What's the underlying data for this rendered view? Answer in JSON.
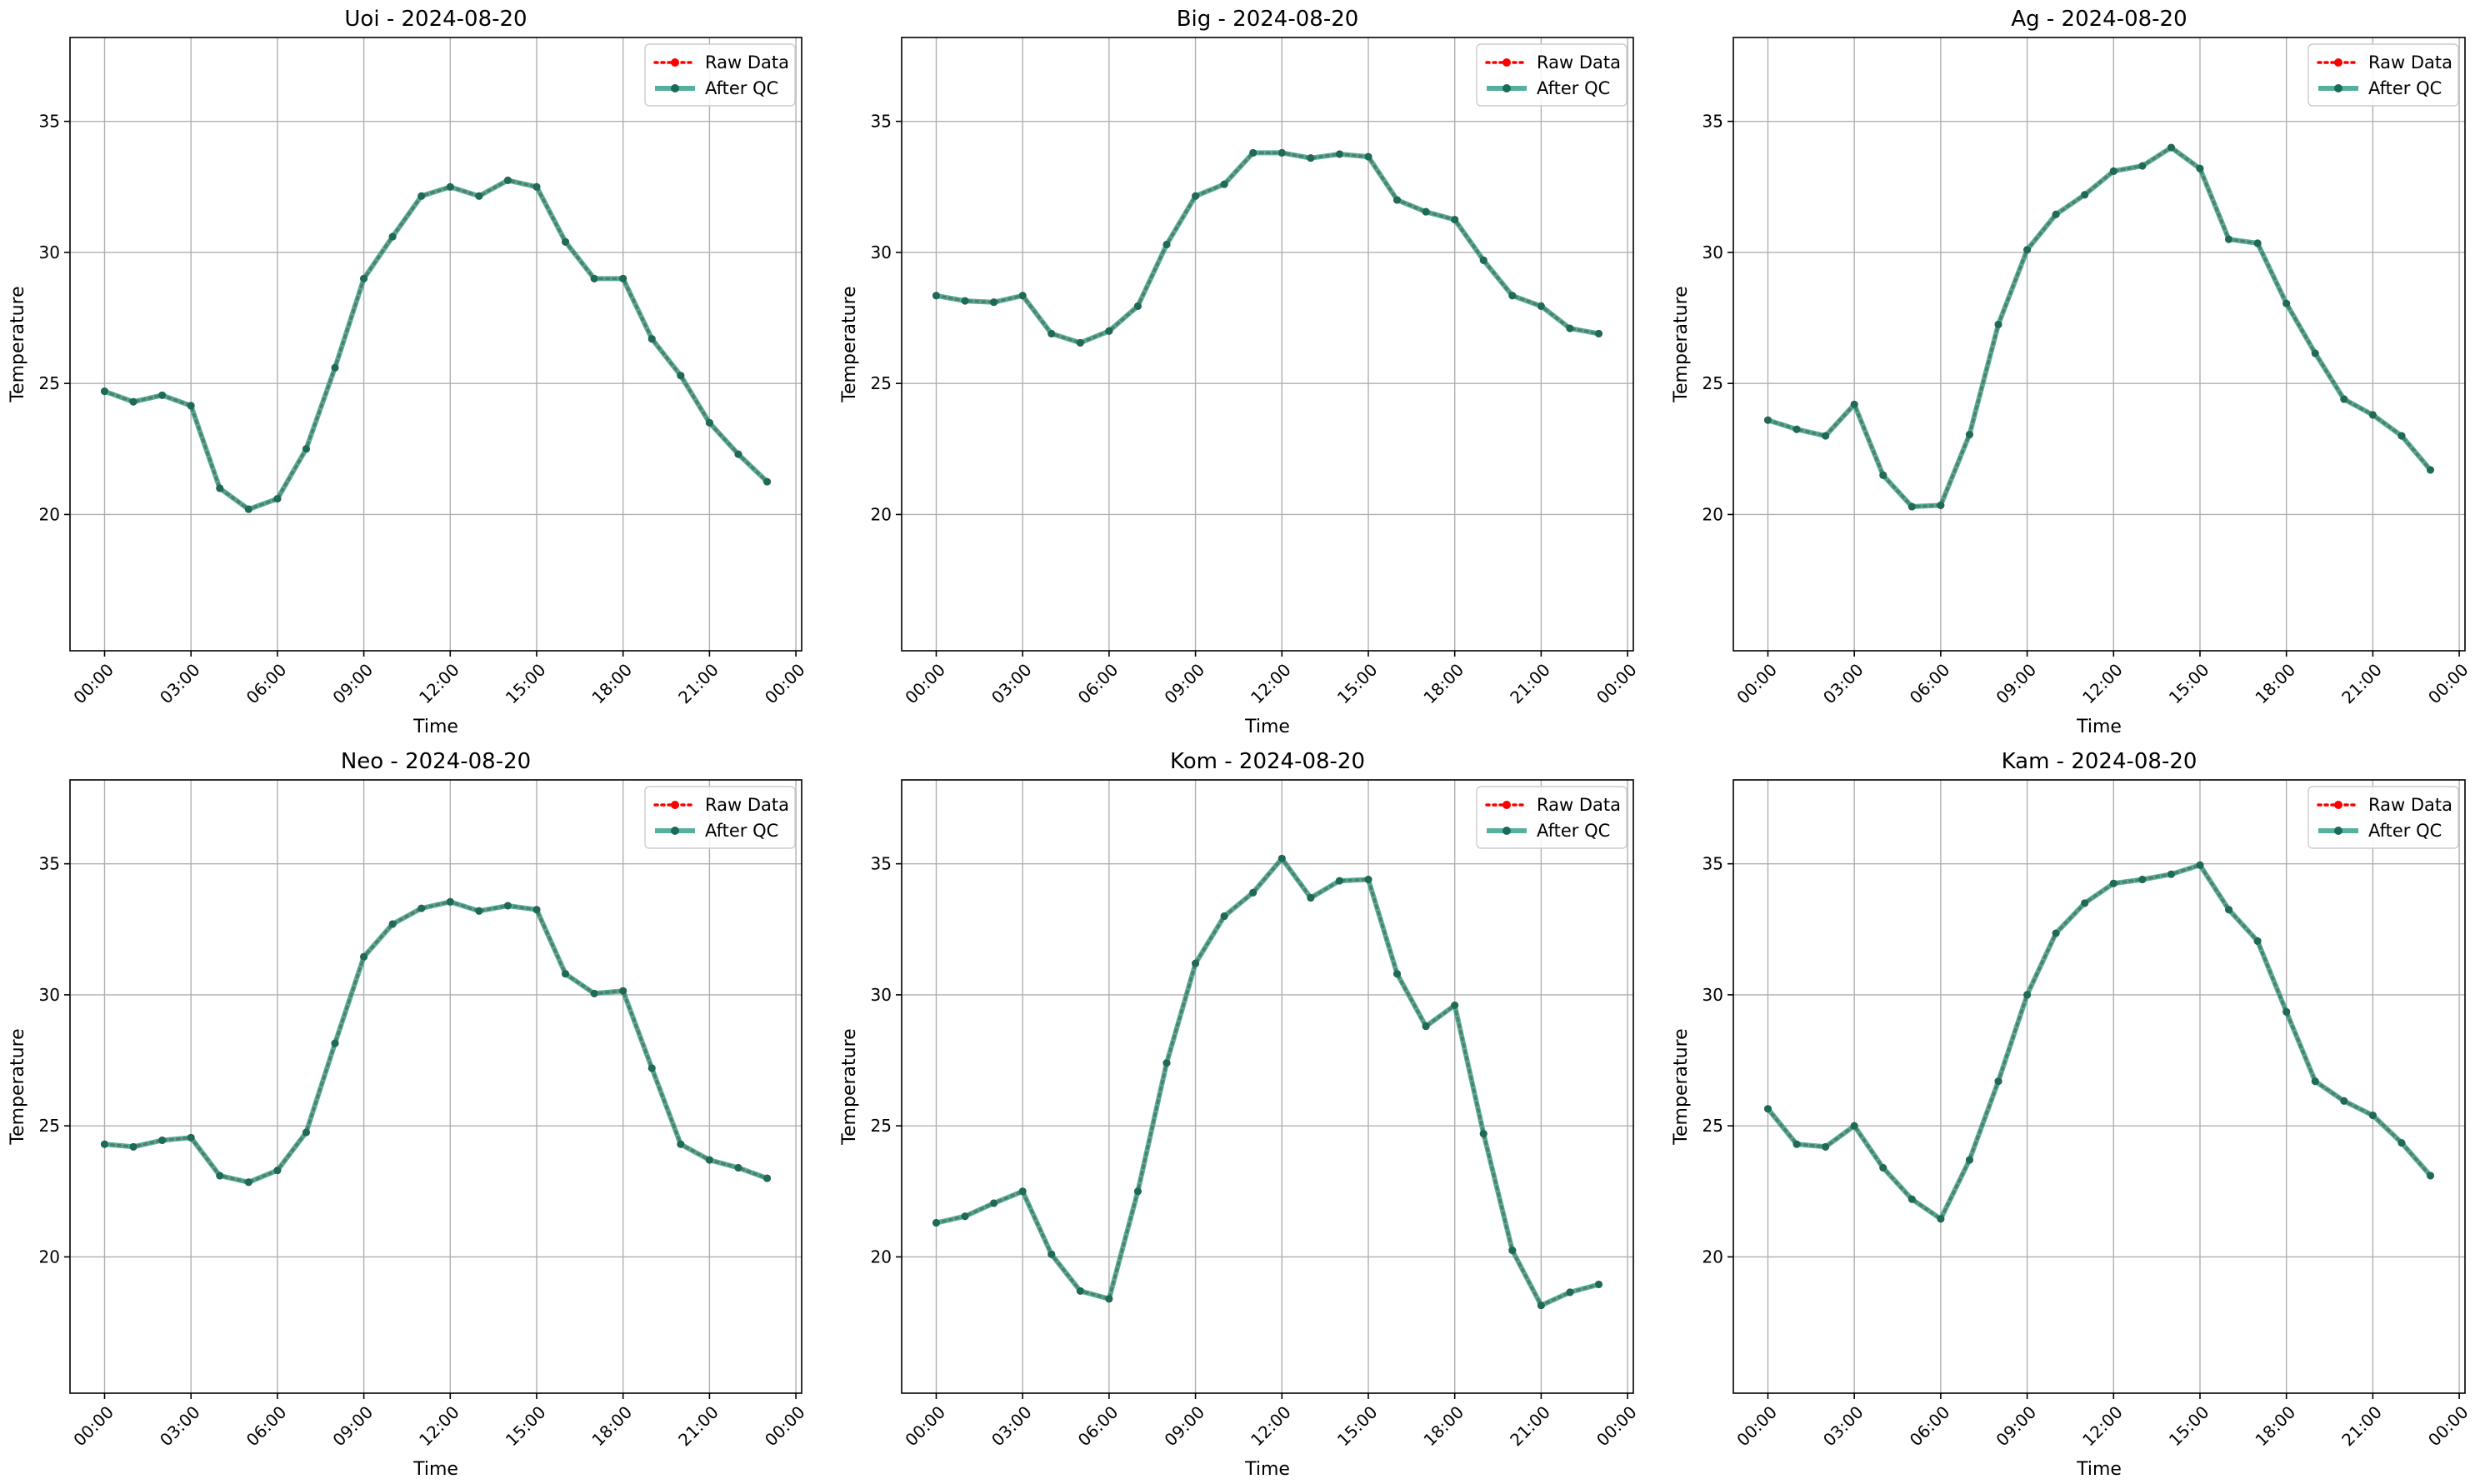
{
  "chart_data": [
    {
      "type": "line",
      "title": "Uoi - 2024-08-20",
      "xlabel": "Time",
      "ylabel": "Temperature",
      "xticks": [
        "00:00",
        "03:00",
        "06:00",
        "09:00",
        "12:00",
        "15:00",
        "18:00",
        "21:00",
        "00:00"
      ],
      "yticks": [
        20,
        25,
        30,
        35
      ],
      "ylim": [
        14.8,
        38.2
      ],
      "xlim_hours": [
        -1.2,
        24.2
      ],
      "grid": true,
      "legend_position": "top-right",
      "x_hours": [
        0,
        1,
        2,
        3,
        4,
        5,
        6,
        7,
        8,
        9,
        10,
        11,
        12,
        13,
        14,
        15,
        16,
        17,
        18,
        19,
        20,
        21,
        22,
        23
      ],
      "series": [
        {
          "name": "Raw Data",
          "color": "#ff0000",
          "style": "dotted-with-markers",
          "values": [
            24.7,
            24.3,
            24.55,
            24.15,
            21.0,
            20.2,
            20.6,
            22.5,
            25.6,
            29.0,
            30.6,
            32.15,
            32.5,
            32.15,
            32.75,
            32.5,
            30.4,
            29.0,
            29.0,
            26.7,
            25.3,
            23.5,
            22.3,
            21.25
          ]
        },
        {
          "name": "After QC",
          "color": "#2b9e84",
          "style": "solid-with-markers",
          "values": [
            24.7,
            24.3,
            24.55,
            24.15,
            21.0,
            20.2,
            20.6,
            22.5,
            25.6,
            29.0,
            30.6,
            32.15,
            32.5,
            32.15,
            32.75,
            32.5,
            30.4,
            29.0,
            29.0,
            26.7,
            25.3,
            23.5,
            22.3,
            21.25
          ]
        }
      ]
    },
    {
      "type": "line",
      "title": "Big - 2024-08-20",
      "xlabel": "Time",
      "ylabel": "Temperature",
      "xticks": [
        "00:00",
        "03:00",
        "06:00",
        "09:00",
        "12:00",
        "15:00",
        "18:00",
        "21:00",
        "00:00"
      ],
      "yticks": [
        20,
        25,
        30,
        35
      ],
      "ylim": [
        14.8,
        38.2
      ],
      "xlim_hours": [
        -1.2,
        24.2
      ],
      "grid": true,
      "legend_position": "top-right",
      "x_hours": [
        0,
        1,
        2,
        3,
        4,
        5,
        6,
        7,
        8,
        9,
        10,
        11,
        12,
        13,
        14,
        15,
        16,
        17,
        18,
        19,
        20,
        21,
        22,
        23
      ],
      "series": [
        {
          "name": "Raw Data",
          "color": "#ff0000",
          "style": "dotted-with-markers",
          "values": [
            28.35,
            28.15,
            28.1,
            28.35,
            26.9,
            26.55,
            27.0,
            27.95,
            30.3,
            32.15,
            32.6,
            33.8,
            33.8,
            33.6,
            33.75,
            33.65,
            32.0,
            31.55,
            31.25,
            29.7,
            28.35,
            27.95,
            27.1,
            26.9
          ]
        },
        {
          "name": "After QC",
          "color": "#2b9e84",
          "style": "solid-with-markers",
          "values": [
            28.35,
            28.15,
            28.1,
            28.35,
            26.9,
            26.55,
            27.0,
            27.95,
            30.3,
            32.15,
            32.6,
            33.8,
            33.8,
            33.6,
            33.75,
            33.65,
            32.0,
            31.55,
            31.25,
            29.7,
            28.35,
            27.95,
            27.1,
            26.9
          ]
        }
      ]
    },
    {
      "type": "line",
      "title": "Ag - 2024-08-20",
      "xlabel": "Time",
      "ylabel": "Temperature",
      "xticks": [
        "00:00",
        "03:00",
        "06:00",
        "09:00",
        "12:00",
        "15:00",
        "18:00",
        "21:00",
        "00:00"
      ],
      "yticks": [
        20,
        25,
        30,
        35
      ],
      "ylim": [
        14.8,
        38.2
      ],
      "xlim_hours": [
        -1.2,
        24.2
      ],
      "grid": true,
      "legend_position": "top-right",
      "x_hours": [
        0,
        1,
        2,
        3,
        4,
        5,
        6,
        7,
        8,
        9,
        10,
        11,
        12,
        13,
        14,
        15,
        16,
        17,
        18,
        19,
        20,
        21,
        22,
        23
      ],
      "series": [
        {
          "name": "Raw Data",
          "color": "#ff0000",
          "style": "dotted-with-markers",
          "values": [
            23.6,
            23.25,
            23.0,
            24.2,
            21.5,
            20.3,
            20.35,
            23.05,
            27.25,
            30.1,
            31.45,
            32.2,
            33.1,
            33.3,
            34.0,
            33.2,
            30.5,
            30.35,
            28.05,
            26.15,
            24.4,
            23.8,
            23.0,
            21.7
          ]
        },
        {
          "name": "After QC",
          "color": "#2b9e84",
          "style": "solid-with-markers",
          "values": [
            23.6,
            23.25,
            23.0,
            24.2,
            21.5,
            20.3,
            20.35,
            23.05,
            27.25,
            30.1,
            31.45,
            32.2,
            33.1,
            33.3,
            34.0,
            33.2,
            30.5,
            30.35,
            28.05,
            26.15,
            24.4,
            23.8,
            23.0,
            21.7
          ]
        }
      ]
    },
    {
      "type": "line",
      "title": "Neo - 2024-08-20",
      "xlabel": "Time",
      "ylabel": "Temperature",
      "xticks": [
        "00:00",
        "03:00",
        "06:00",
        "09:00",
        "12:00",
        "15:00",
        "18:00",
        "21:00",
        "00:00"
      ],
      "yticks": [
        20,
        25,
        30,
        35
      ],
      "ylim": [
        14.8,
        38.2
      ],
      "xlim_hours": [
        -1.2,
        24.2
      ],
      "grid": true,
      "legend_position": "top-right",
      "x_hours": [
        0,
        1,
        2,
        3,
        4,
        5,
        6,
        7,
        8,
        9,
        10,
        11,
        12,
        13,
        14,
        15,
        16,
        17,
        18,
        19,
        20,
        21,
        22,
        23
      ],
      "series": [
        {
          "name": "Raw Data",
          "color": "#ff0000",
          "style": "dotted-with-markers",
          "values": [
            24.3,
            24.2,
            24.45,
            24.55,
            23.1,
            22.85,
            23.3,
            24.75,
            28.15,
            31.45,
            32.7,
            33.3,
            33.55,
            33.2,
            33.4,
            33.25,
            30.8,
            30.05,
            30.15,
            27.2,
            24.3,
            23.7,
            23.4,
            23.0
          ]
        },
        {
          "name": "After QC",
          "color": "#2b9e84",
          "style": "solid-with-markers",
          "values": [
            24.3,
            24.2,
            24.45,
            24.55,
            23.1,
            22.85,
            23.3,
            24.75,
            28.15,
            31.45,
            32.7,
            33.3,
            33.55,
            33.2,
            33.4,
            33.25,
            30.8,
            30.05,
            30.15,
            27.2,
            24.3,
            23.7,
            23.4,
            23.0
          ]
        }
      ]
    },
    {
      "type": "line",
      "title": "Kom - 2024-08-20",
      "xlabel": "Time",
      "ylabel": "Temperature",
      "xticks": [
        "00:00",
        "03:00",
        "06:00",
        "09:00",
        "12:00",
        "15:00",
        "18:00",
        "21:00",
        "00:00"
      ],
      "yticks": [
        20,
        25,
        30,
        35
      ],
      "ylim": [
        14.8,
        38.2
      ],
      "xlim_hours": [
        -1.2,
        24.2
      ],
      "grid": true,
      "legend_position": "top-right",
      "x_hours": [
        0,
        1,
        2,
        3,
        4,
        5,
        6,
        7,
        8,
        9,
        10,
        11,
        12,
        13,
        14,
        15,
        16,
        17,
        18,
        19,
        20,
        21,
        22,
        23
      ],
      "series": [
        {
          "name": "Raw Data",
          "color": "#ff0000",
          "style": "dotted-with-markers",
          "values": [
            21.3,
            21.55,
            22.05,
            22.5,
            20.1,
            18.7,
            18.4,
            22.5,
            27.4,
            31.2,
            33.0,
            33.9,
            35.2,
            33.7,
            34.35,
            34.4,
            30.8,
            28.8,
            29.6,
            24.7,
            20.25,
            18.15,
            18.65,
            18.95
          ]
        },
        {
          "name": "After QC",
          "color": "#2b9e84",
          "style": "solid-with-markers",
          "values": [
            21.3,
            21.55,
            22.05,
            22.5,
            20.1,
            18.7,
            18.4,
            22.5,
            27.4,
            31.2,
            33.0,
            33.9,
            35.2,
            33.7,
            34.35,
            34.4,
            30.8,
            28.8,
            29.6,
            24.7,
            20.25,
            18.15,
            18.65,
            18.95
          ]
        }
      ]
    },
    {
      "type": "line",
      "title": "Kam - 2024-08-20",
      "xlabel": "Time",
      "ylabel": "Temperature",
      "xticks": [
        "00:00",
        "03:00",
        "06:00",
        "09:00",
        "12:00",
        "15:00",
        "18:00",
        "21:00",
        "00:00"
      ],
      "yticks": [
        20,
        25,
        30,
        35
      ],
      "ylim": [
        14.8,
        38.2
      ],
      "xlim_hours": [
        -1.2,
        24.2
      ],
      "grid": true,
      "legend_position": "top-right",
      "x_hours": [
        0,
        1,
        2,
        3,
        4,
        5,
        6,
        7,
        8,
        9,
        10,
        11,
        12,
        13,
        14,
        15,
        16,
        17,
        18,
        19,
        20,
        21,
        22,
        23
      ],
      "series": [
        {
          "name": "Raw Data",
          "color": "#ff0000",
          "style": "dotted-with-markers",
          "values": [
            25.65,
            24.3,
            24.2,
            25.0,
            23.4,
            22.2,
            21.45,
            23.7,
            26.7,
            30.0,
            32.35,
            33.5,
            34.25,
            34.4,
            34.6,
            34.95,
            33.25,
            32.05,
            29.35,
            26.7,
            25.95,
            25.4,
            24.35,
            23.1
          ]
        },
        {
          "name": "After QC",
          "color": "#2b9e84",
          "style": "solid-with-markers",
          "values": [
            25.65,
            24.3,
            24.2,
            25.0,
            23.4,
            22.2,
            21.45,
            23.7,
            26.7,
            30.0,
            32.35,
            33.5,
            34.25,
            34.4,
            34.6,
            34.95,
            33.25,
            32.05,
            29.35,
            26.7,
            25.95,
            25.4,
            24.35,
            23.1
          ]
        }
      ]
    }
  ]
}
